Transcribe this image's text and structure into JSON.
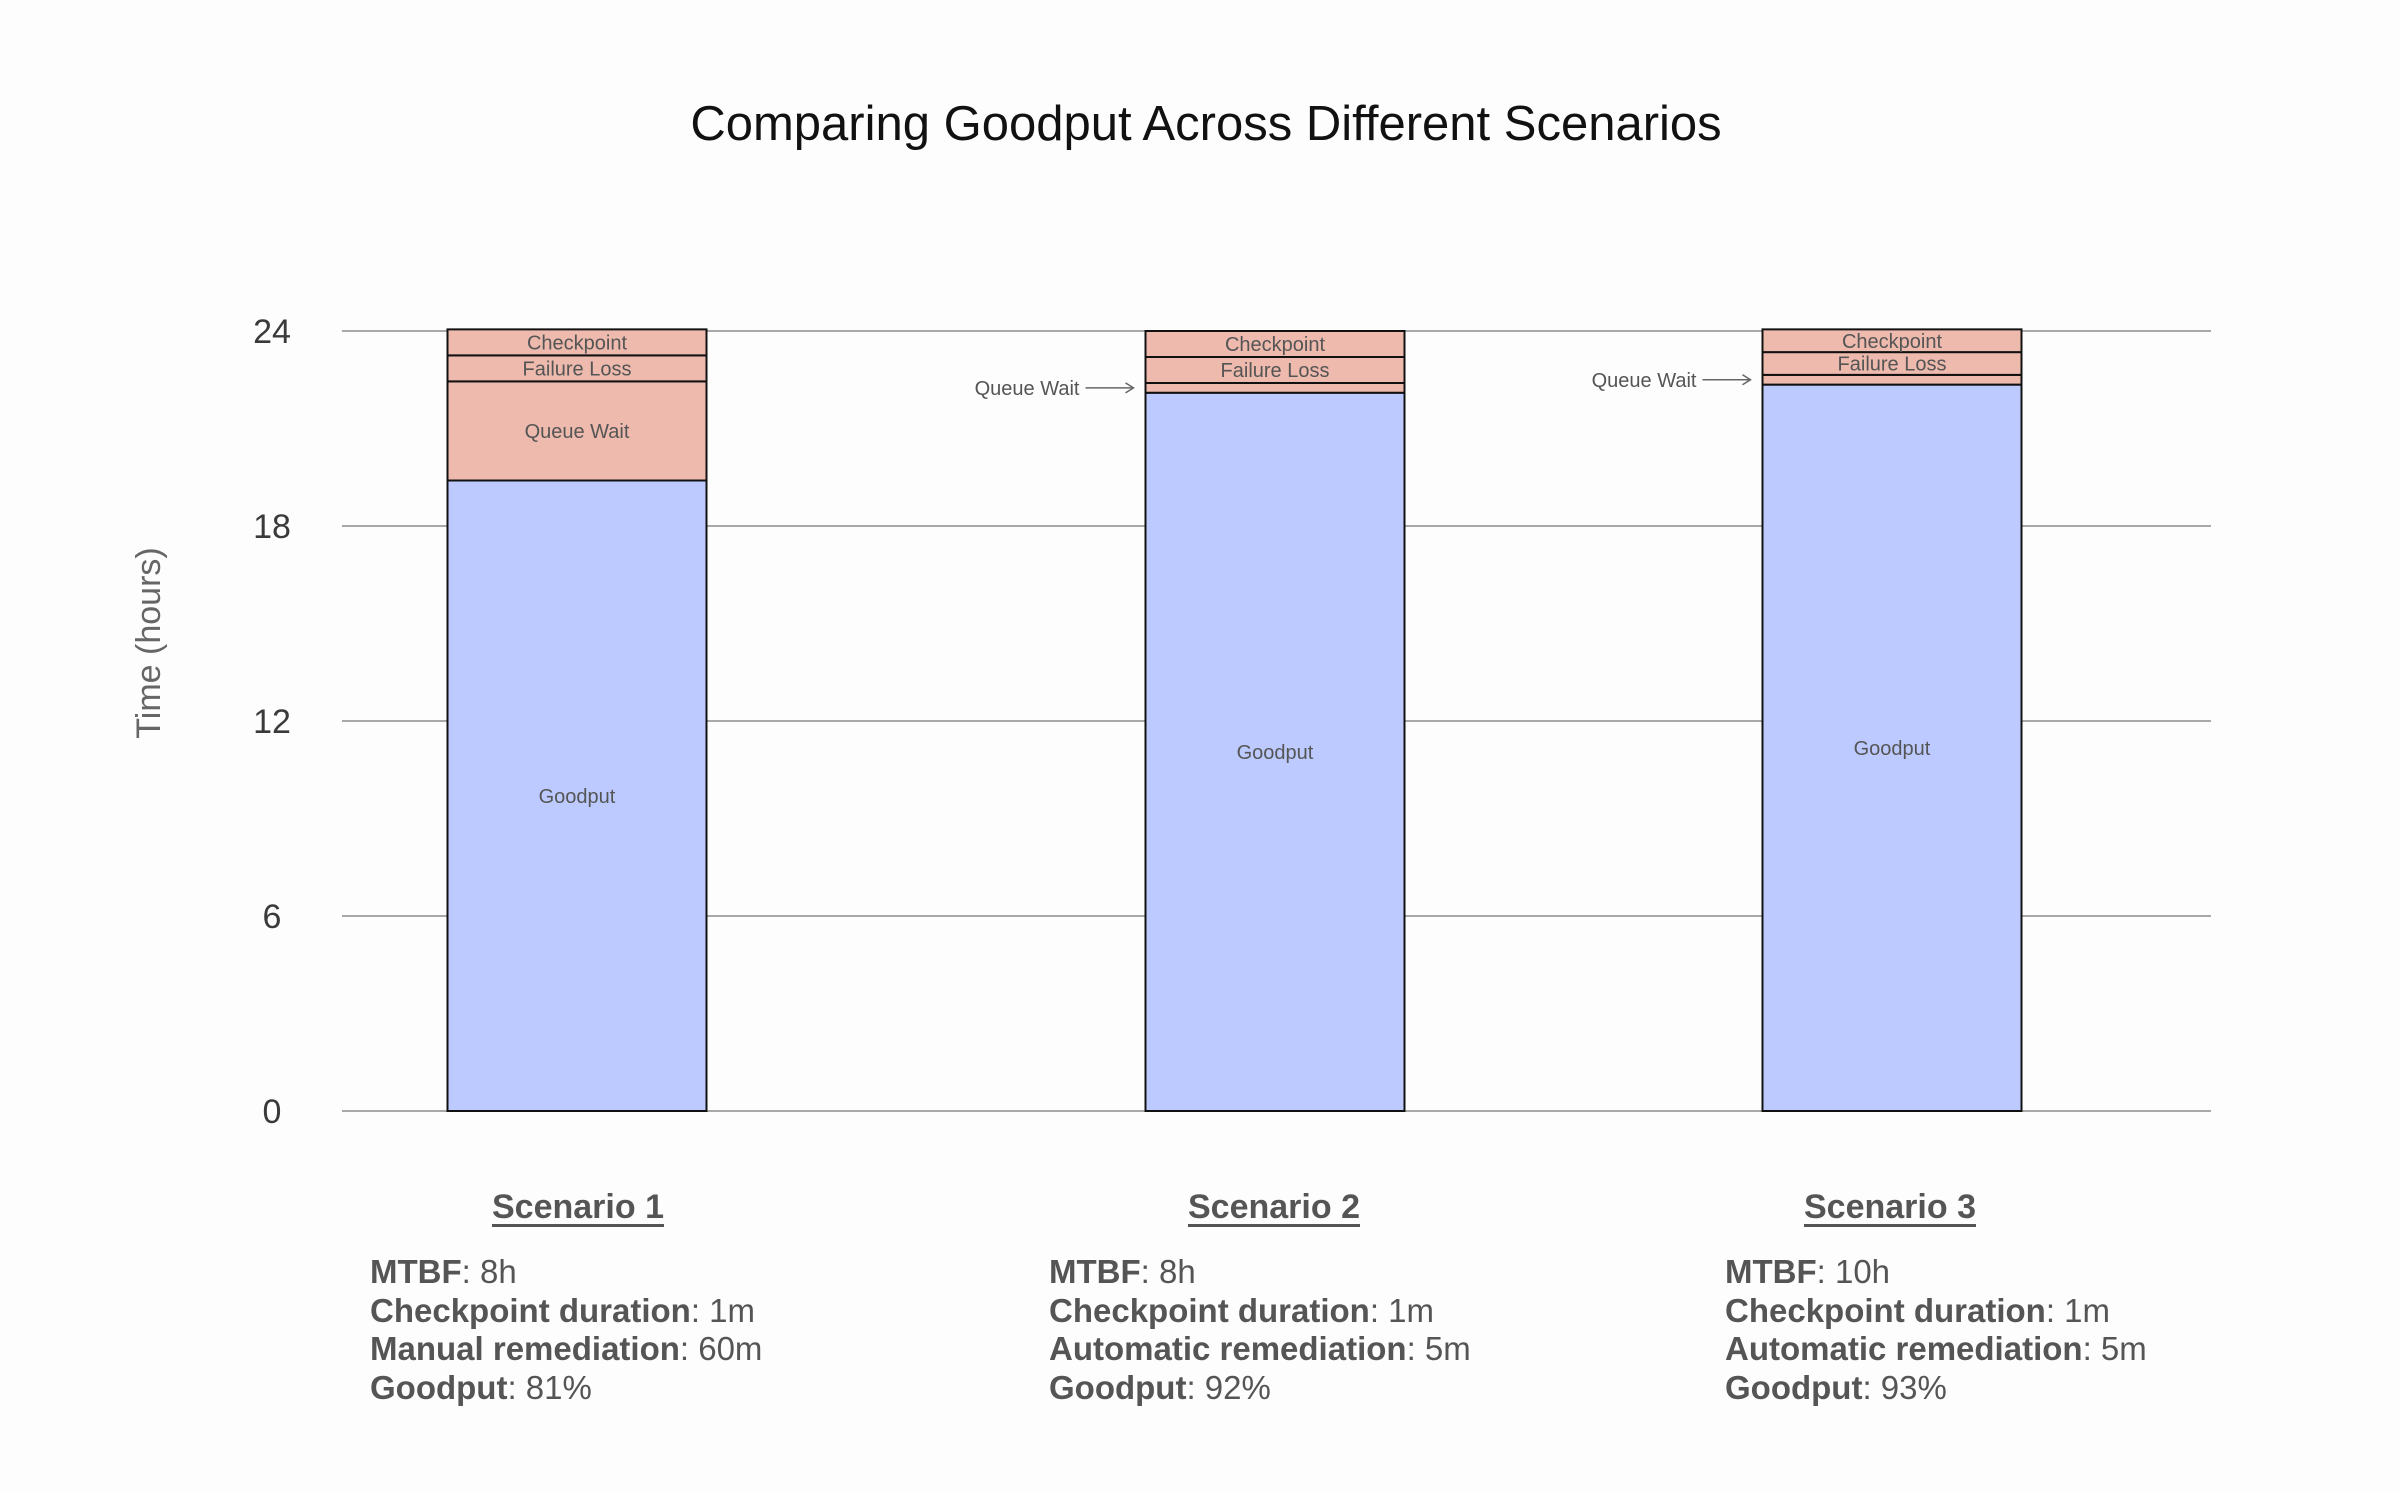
{
  "chart_data": {
    "type": "bar",
    "stacked": true,
    "title": "Comparing Goodput Across Different Scenarios",
    "xlabel": "",
    "ylabel": "Time (hours)",
    "ylim": [
      0,
      24
    ],
    "yticks": [
      0,
      6,
      12,
      18,
      24
    ],
    "grid": "horizontal",
    "categories": [
      "Scenario 1",
      "Scenario 2",
      "Scenario 3"
    ],
    "series": [
      {
        "name": "Goodput",
        "color": "#bccaff",
        "values": [
          19.4,
          22.1,
          22.35
        ],
        "label_mode": [
          "inside",
          "inside",
          "inside"
        ]
      },
      {
        "name": "Queue Wait",
        "color": "#edbaad",
        "values": [
          3.05,
          0.3,
          0.3
        ],
        "label_mode": [
          "inside",
          "callout",
          "callout"
        ]
      },
      {
        "name": "Failure Loss",
        "color": "#edbaad",
        "values": [
          0.8,
          0.8,
          0.7
        ],
        "label_mode": [
          "inside",
          "inside",
          "inside"
        ]
      },
      {
        "name": "Checkpoint",
        "color": "#edbaad",
        "values": [
          0.8,
          0.8,
          0.7
        ],
        "label_mode": [
          "inside",
          "inside",
          "inside"
        ]
      }
    ]
  },
  "scenarios": [
    {
      "name": "Scenario 1",
      "params": [
        {
          "key": "MTBF",
          "value": ": 8h"
        },
        {
          "key": "Checkpoint duration",
          "value": ": 1m"
        },
        {
          "key": "Manual remediation",
          "value": ": 60m"
        },
        {
          "key": "Goodput",
          "value": ": 81%"
        }
      ]
    },
    {
      "name": "Scenario 2",
      "params": [
        {
          "key": "MTBF",
          "value": ": 8h"
        },
        {
          "key": "Checkpoint duration",
          "value": ": 1m"
        },
        {
          "key": "Automatic remediation",
          "value": ": 5m"
        },
        {
          "key": "Goodput",
          "value": ": 92%"
        }
      ]
    },
    {
      "name": "Scenario 3",
      "params": [
        {
          "key": "MTBF",
          "value": ": 10h"
        },
        {
          "key": "Checkpoint duration",
          "value": ": 1m"
        },
        {
          "key": "Automatic remediation",
          "value": ": 5m"
        },
        {
          "key": "Goodput",
          "value": ": 93%"
        }
      ]
    }
  ]
}
